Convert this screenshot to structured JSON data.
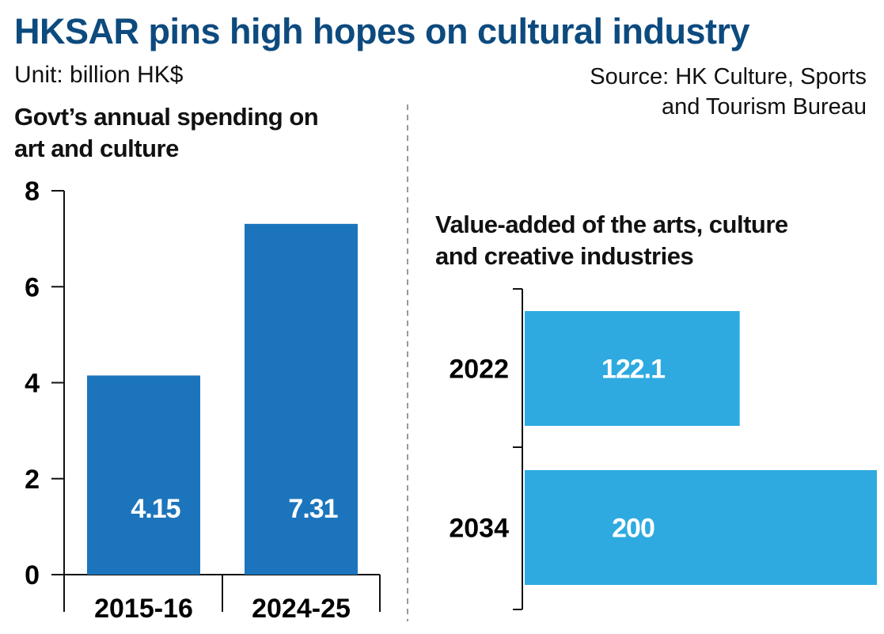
{
  "title": "HKSAR pins high hopes on cultural industry",
  "unit": "Unit: billion HK$",
  "source": [
    "Source: HK Culture, Sports",
    "and Tourism Bureau"
  ],
  "colors": {
    "title": "#0d4a7e",
    "left_bars": "#1c75bc",
    "right_bars": "#2eaae1"
  },
  "chart_data": [
    {
      "type": "bar",
      "title": [
        "Govt’s annual spending on",
        "art and culture"
      ],
      "categories": [
        "2015-16",
        "2024-25"
      ],
      "values": [
        4.15,
        7.31
      ],
      "value_labels": [
        "4.15",
        "7.31"
      ],
      "ylim": [
        0,
        8
      ],
      "yticks": [
        "0",
        "2",
        "4",
        "6",
        "8"
      ],
      "xlabel": "",
      "ylabel": ""
    },
    {
      "type": "bar",
      "orientation": "horizontal",
      "title": [
        "Value-added of the arts, culture",
        "and creative industries"
      ],
      "categories": [
        "2022",
        "2034"
      ],
      "values": [
        122.1,
        200
      ],
      "value_labels": [
        "122.1",
        "200"
      ],
      "xlim": [
        0,
        200
      ]
    }
  ]
}
